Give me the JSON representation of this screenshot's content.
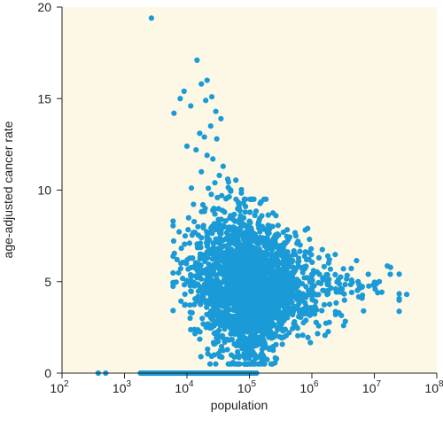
{
  "colors": {
    "background": "#ffffff",
    "plot_area": "#fdf8e6",
    "axis": "#222222",
    "point": "#1a9ad6"
  },
  "chart_data": {
    "type": "scatter",
    "title": "",
    "xlabel": "population",
    "ylabel": "age-adjusted cancer rate",
    "x_scale": "log10",
    "xlim": [
      100,
      100000000
    ],
    "ylim": [
      0,
      20
    ],
    "grid": false,
    "legend": "none",
    "x_ticks": [
      {
        "value": 100,
        "base": "10",
        "exp": "2"
      },
      {
        "value": 1000,
        "base": "10",
        "exp": "3"
      },
      {
        "value": 10000,
        "base": "10",
        "exp": "4"
      },
      {
        "value": 100000,
        "base": "10",
        "exp": "5"
      },
      {
        "value": 1000000,
        "base": "10",
        "exp": "6"
      },
      {
        "value": 10000000,
        "base": "10",
        "exp": "7"
      },
      {
        "value": 100000000,
        "base": "10",
        "exp": "8"
      }
    ],
    "y_ticks": [
      {
        "value": 0,
        "label": "0"
      },
      {
        "value": 5,
        "label": "5"
      },
      {
        "value": 10,
        "label": "10"
      },
      {
        "value": 15,
        "label": "15"
      },
      {
        "value": 20,
        "label": "20"
      }
    ],
    "series": [
      {
        "points": [
          [
            2700,
            19.4
          ],
          [
            14500,
            17.1
          ],
          [
            17000,
            15.8
          ],
          [
            21000,
            16.0
          ],
          [
            25000,
            15.1
          ],
          [
            20000,
            14.9
          ],
          [
            9000,
            15.4
          ],
          [
            7800,
            15.0
          ],
          [
            6200,
            14.2
          ],
          [
            11500,
            14.6
          ],
          [
            29000,
            14.3
          ],
          [
            35000,
            13.9
          ],
          [
            24000,
            13.5
          ],
          [
            16000,
            13.1
          ],
          [
            19000,
            12.9
          ],
          [
            30000,
            12.8
          ],
          [
            10000,
            12.4
          ],
          [
            14000,
            12.2
          ],
          [
            21000,
            11.9
          ],
          [
            26000,
            11.7
          ],
          [
            38000,
            11.3
          ],
          [
            17000,
            11.0
          ],
          [
            33000,
            10.8
          ],
          [
            45000,
            10.6
          ],
          [
            28000,
            10.4
          ],
          [
            22000,
            10.1
          ],
          [
            50000,
            10.0
          ],
          [
            36000,
            9.7
          ],
          [
            61000,
            9.5
          ],
          [
            18000,
            9.2
          ],
          [
            27000,
            9.0
          ],
          [
            40000,
            8.8
          ],
          [
            72000,
            8.6
          ],
          [
            32000,
            8.3
          ],
          [
            15000,
            8.0
          ],
          [
            55000,
            7.9
          ],
          [
            100000,
            8.3
          ],
          [
            140000,
            8.1
          ],
          [
            200000,
            7.9
          ],
          [
            280000,
            7.6
          ],
          [
            420000,
            7.3
          ],
          [
            600000,
            7.2
          ],
          [
            210000,
            7.0
          ],
          [
            350000,
            6.8
          ],
          [
            900000,
            6.6
          ],
          [
            1300000,
            6.3
          ],
          [
            1800000,
            6.4
          ],
          [
            3200000,
            5.7
          ],
          [
            5500000,
            5.0
          ],
          [
            8000000,
            5.4
          ],
          [
            12000000,
            5.0
          ],
          [
            18000000,
            5.4
          ],
          [
            33000000,
            4.3
          ],
          [
            2400000,
            4.6
          ],
          [
            1500000,
            5.2
          ],
          [
            750000,
            5.8
          ],
          [
            450000,
            4.9
          ],
          [
            260000,
            4.1
          ],
          [
            160000,
            3.6
          ],
          [
            60000,
            2.9
          ],
          [
            80000,
            2.4
          ],
          [
            110000,
            2.1
          ],
          [
            75000,
            1.6
          ],
          [
            95000,
            1.0
          ],
          [
            160000,
            1.3
          ],
          [
            125000,
            0.8
          ],
          [
            230000,
            1.4
          ],
          [
            40000,
            2.5
          ],
          [
            30000,
            3.4
          ],
          [
            25000,
            4.2
          ],
          [
            12000,
            5.0
          ],
          [
            8000,
            6.0
          ],
          [
            11000,
            7.1
          ],
          [
            380,
            0
          ],
          [
            500,
            0
          ]
        ]
      }
    ],
    "zero_band": {
      "y": 0,
      "x_from": 1800,
      "x_to": 130000
    },
    "main_cloud": {
      "center": [
        80000,
        4.6
      ],
      "x_range": [
        6000,
        25000000
      ],
      "y_range": [
        0.5,
        9.5
      ]
    }
  }
}
